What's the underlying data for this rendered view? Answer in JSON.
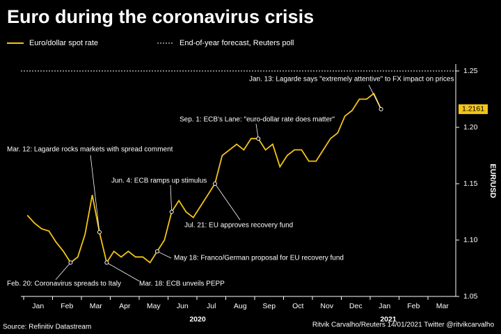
{
  "chart_data": {
    "type": "line",
    "title": "Euro during the coronavirus crisis",
    "y_label": "EUR/USD",
    "source": "Source: Refinitiv Datastream",
    "credit": "Ritvik Carvalho/Reuters 14/01/2021 Twitter @ritvikcarvalho",
    "year_labels": [
      "2020",
      "2021"
    ],
    "categories": [
      "Jan",
      null,
      null,
      null,
      "Feb",
      null,
      null,
      null,
      "Mar",
      null,
      null,
      null,
      "Apr",
      null,
      null,
      null,
      "May",
      null,
      null,
      null,
      "Jun",
      null,
      null,
      null,
      "Jul",
      null,
      null,
      null,
      "Aug",
      null,
      null,
      null,
      "Sep",
      null,
      null,
      null,
      "Oct",
      null,
      null,
      null,
      "Nov",
      null,
      null,
      null,
      "Dec",
      null,
      null,
      null,
      "Jan",
      null,
      null,
      null,
      "Feb",
      null,
      null,
      null,
      "Mar",
      null,
      null,
      null
    ],
    "series": [
      {
        "name": "Euro/dollar spot rate",
        "color": "#f5c518",
        "values": [
          1.122,
          1.115,
          1.11,
          1.108,
          1.098,
          1.09,
          1.08,
          1.085,
          1.105,
          1.14,
          1.107,
          1.08,
          1.09,
          1.085,
          1.09,
          1.085,
          1.085,
          1.08,
          1.09,
          1.1,
          1.125,
          1.135,
          1.125,
          1.12,
          1.13,
          1.14,
          1.15,
          1.175,
          1.18,
          1.185,
          1.18,
          1.19,
          1.19,
          1.18,
          1.185,
          1.165,
          1.175,
          1.18,
          1.18,
          1.17,
          1.17,
          1.18,
          1.19,
          1.195,
          1.21,
          1.215,
          1.225,
          1.225,
          1.23,
          1.2161,
          null,
          null,
          null,
          null,
          null,
          null,
          null,
          null,
          null,
          null
        ]
      }
    ],
    "reference_lines": [
      {
        "name": "End-of-year forecast, Reuters poll",
        "value": 1.25,
        "color": "#ffffff"
      }
    ],
    "ylim": [
      1.05,
      1.255
    ],
    "yticks": [
      1.05,
      {
        "value": 1.1,
        "label": "1.10"
      },
      1.15,
      {
        "value": 1.2,
        "label": "1.20"
      },
      1.25
    ],
    "annotations": [
      {
        "text": "Feb. 20: Coronavirus spreads to Italy"
      },
      {
        "text": "Mar. 12: Lagarde rocks markets with spread comment"
      },
      {
        "text": "Mar. 18: ECB unveils PEPP"
      },
      {
        "text": "May 18: Franco/German proposal for EU recovery fund"
      },
      {
        "text": "Jun. 4: ECB ramps up stimulus"
      },
      {
        "text": "Jul. 21: EU approves recovery fund"
      },
      {
        "text": "Sep. 1: ECB's Lane: \"euro-dollar rate does matter\""
      },
      {
        "text": "Jan. 13: Lagarde says \"extremely attentive\" to FX impact on prices"
      }
    ]
  }
}
